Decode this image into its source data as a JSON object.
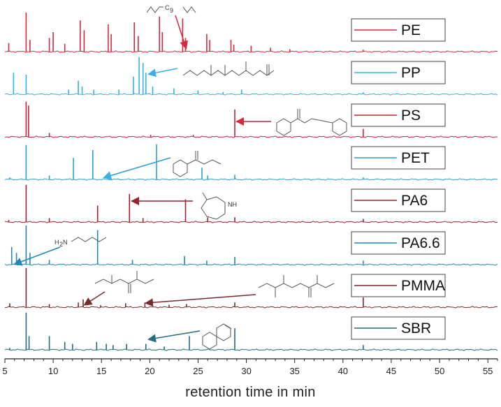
{
  "chart_data": {
    "type": "line",
    "title": "",
    "xlabel": "retention time in min",
    "ylabel": "",
    "xlim": [
      5,
      56
    ],
    "x_ticks": [
      5,
      10,
      15,
      20,
      25,
      30,
      35,
      40,
      45,
      50,
      55
    ],
    "x_tick_labels": [
      "5",
      "10",
      "15",
      "20",
      "25",
      "30",
      "35",
      "40",
      "45",
      "50",
      "55"
    ],
    "legend_placement": "right of each trace",
    "series": [
      {
        "name": "PE",
        "color": "#d42a3c",
        "peaks": [
          [
            5.4,
            0.22
          ],
          [
            7.2,
            1.0
          ],
          [
            7.6,
            0.3
          ],
          [
            9.6,
            0.35
          ],
          [
            10.0,
            0.5
          ],
          [
            11.2,
            0.2
          ],
          [
            12.8,
            0.8
          ],
          [
            13.2,
            0.55
          ],
          [
            15.7,
            0.7
          ],
          [
            16.0,
            0.45
          ],
          [
            18.4,
            0.75
          ],
          [
            18.8,
            0.4
          ],
          [
            21.0,
            0.9
          ],
          [
            21.3,
            0.5
          ],
          [
            23.4,
            0.85
          ],
          [
            23.7,
            0.35
          ],
          [
            25.9,
            0.45
          ],
          [
            26.2,
            0.3
          ],
          [
            28.4,
            0.3
          ],
          [
            28.7,
            0.18
          ],
          [
            30.5,
            0.15
          ],
          [
            32.5,
            0.1
          ],
          [
            34.5,
            0.06
          ],
          [
            42.1,
            0.05
          ]
        ]
      },
      {
        "name": "PP",
        "color": "#35b1e6",
        "peaks": [
          [
            5.9,
            0.55
          ],
          [
            7.2,
            0.5
          ],
          [
            11.6,
            0.12
          ],
          [
            12.6,
            0.35
          ],
          [
            13.0,
            0.2
          ],
          [
            14.2,
            0.12
          ],
          [
            16.8,
            0.12
          ],
          [
            18.3,
            0.45
          ],
          [
            18.9,
            0.95
          ],
          [
            19.3,
            0.8
          ],
          [
            19.6,
            0.55
          ],
          [
            20.3,
            0.2
          ],
          [
            22.5,
            0.15
          ],
          [
            25.0,
            0.1
          ],
          [
            27.6,
            0.06
          ],
          [
            29.5,
            0.12
          ],
          [
            42.1,
            0.05
          ]
        ]
      },
      {
        "name": "PS",
        "color": "#c0233a",
        "peaks": [
          [
            7.2,
            0.9
          ],
          [
            7.45,
            0.8
          ],
          [
            9.6,
            0.1
          ],
          [
            20.1,
            0.05
          ],
          [
            24.5,
            0.05
          ],
          [
            28.8,
            0.7
          ],
          [
            42.1,
            0.2
          ]
        ]
      },
      {
        "name": "PET",
        "color": "#2a9ed6",
        "peaks": [
          [
            5.5,
            0.05
          ],
          [
            7.2,
            0.88
          ],
          [
            9.6,
            0.1
          ],
          [
            12.1,
            0.55
          ],
          [
            14.1,
            0.75
          ],
          [
            15.8,
            0.2
          ],
          [
            20.7,
            0.9
          ],
          [
            25.4,
            0.3
          ],
          [
            26.0,
            0.1
          ],
          [
            28.8,
            0.12
          ],
          [
            42.1,
            0.05
          ]
        ]
      },
      {
        "name": "PA6",
        "color": "#9e1f2e",
        "peaks": [
          [
            5.4,
            0.05
          ],
          [
            7.2,
            0.95
          ],
          [
            9.6,
            0.1
          ],
          [
            14.6,
            0.42
          ],
          [
            17.9,
            0.72
          ],
          [
            19.3,
            0.1
          ],
          [
            23.7,
            0.58
          ],
          [
            26.0,
            0.12
          ],
          [
            28.8,
            0.12
          ],
          [
            42.1,
            0.08
          ]
        ]
      },
      {
        "name": "PA6.6",
        "color": "#2088b8",
        "peaks": [
          [
            5.7,
            0.45
          ],
          [
            6.2,
            0.3
          ],
          [
            7.2,
            1.0
          ],
          [
            7.6,
            0.3
          ],
          [
            9.6,
            0.12
          ],
          [
            14.6,
            0.88
          ],
          [
            18.2,
            0.12
          ],
          [
            23.6,
            0.22
          ],
          [
            25.9,
            0.1
          ],
          [
            28.8,
            0.2
          ],
          [
            42.1,
            0.1
          ]
        ]
      },
      {
        "name": "PMMA",
        "color": "#7a2a2a",
        "peaks": [
          [
            5.5,
            0.1
          ],
          [
            7.2,
            1.0
          ],
          [
            9.6,
            0.08
          ],
          [
            12.6,
            0.12
          ],
          [
            13.1,
            0.2
          ],
          [
            14.9,
            0.05
          ],
          [
            17.5,
            0.1
          ],
          [
            19.5,
            0.12
          ],
          [
            22.0,
            0.06
          ],
          [
            23.8,
            0.08
          ],
          [
            28.8,
            0.12
          ],
          [
            42.1,
            0.25
          ]
        ]
      },
      {
        "name": "SBR",
        "color": "#226b80",
        "peaks": [
          [
            5.5,
            0.05
          ],
          [
            7.2,
            0.95
          ],
          [
            7.5,
            0.35
          ],
          [
            9.6,
            0.35
          ],
          [
            11.2,
            0.2
          ],
          [
            12.0,
            0.15
          ],
          [
            14.5,
            0.2
          ],
          [
            15.5,
            0.15
          ],
          [
            16.2,
            0.12
          ],
          [
            17.6,
            0.15
          ],
          [
            19.6,
            0.15
          ],
          [
            21.5,
            0.08
          ],
          [
            24.1,
            0.35
          ],
          [
            28.8,
            0.55
          ],
          [
            42.1,
            0.12
          ]
        ]
      }
    ],
    "structure_labels": {
      "pe_chain": "C",
      "pe_sub": "9",
      "pa6_nh": "NH",
      "pa66_amine": "H",
      "pa66_amine_sub": "2",
      "pa66_amine_n": "N"
    }
  }
}
